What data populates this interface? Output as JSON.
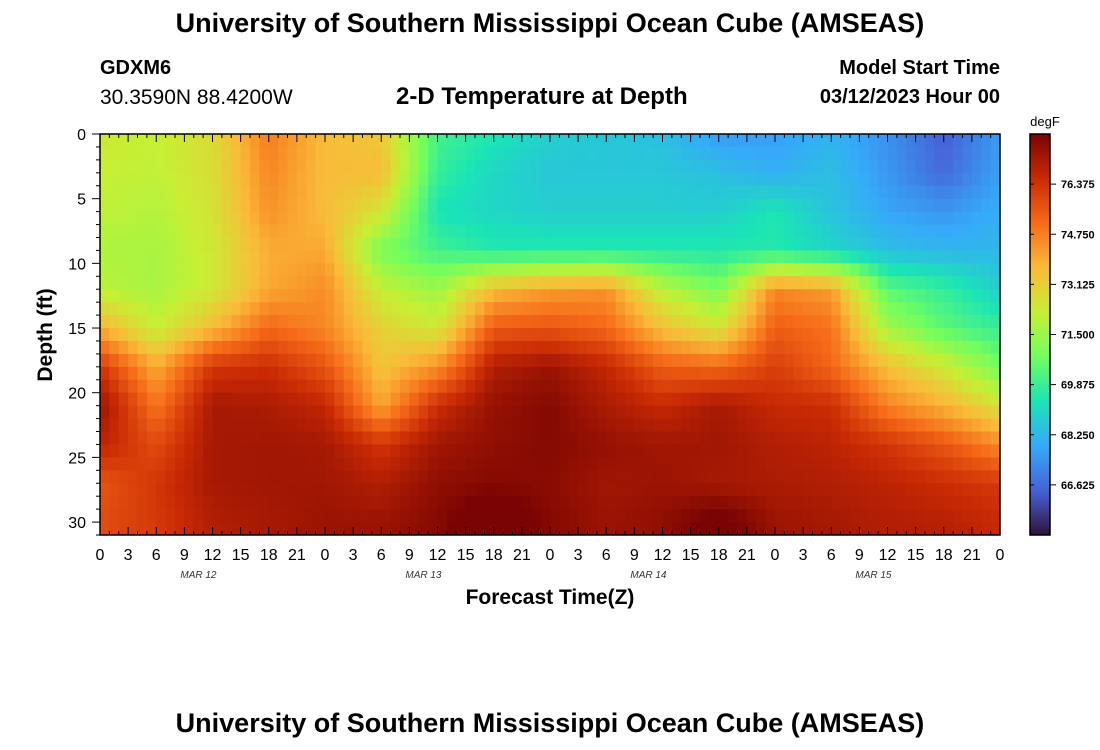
{
  "header": {
    "title": "University of Southern Mississippi Ocean Cube (AMSEAS)",
    "station": "GDXM6",
    "coords": "30.3590N  88.4200W",
    "start_label": "Model Start Time",
    "start_value": "03/12/2023 Hour 00"
  },
  "footer": {
    "title": "University of Southern Mississippi Ocean Cube (AMSEAS)"
  },
  "chart_data": {
    "type": "heatmap",
    "title": "2-D Temperature at Depth",
    "xlabel": "Forecast Time(Z)",
    "ylabel": "Depth (ft)",
    "colorbar_unit": "degF",
    "x_tick_labels": [
      "0",
      "3",
      "6",
      "9",
      "12",
      "15",
      "18",
      "21",
      "0",
      "3",
      "6",
      "9",
      "12",
      "15",
      "18",
      "21",
      "0",
      "3",
      "6",
      "9",
      "12",
      "15",
      "18",
      "21",
      "0",
      "3",
      "6",
      "9",
      "12",
      "15",
      "18",
      "21",
      "0"
    ],
    "day_labels": [
      "MAR 12",
      "MAR 13",
      "MAR 14",
      "MAR 15"
    ],
    "y_ticks": [
      0,
      5,
      10,
      15,
      20,
      25,
      30
    ],
    "y_range": [
      0,
      31
    ],
    "x_range_hours": [
      0,
      96
    ],
    "colorbar_ticks": [
      "76.375",
      "74.750",
      "73.125",
      "71.500",
      "69.875",
      "68.250",
      "66.625"
    ],
    "colorbar_values": [
      76.375,
      74.75,
      73.125,
      71.5,
      69.875,
      68.25,
      66.625
    ],
    "colorbar_range": [
      65.0,
      78.0
    ],
    "colormap": [
      "#30123b",
      "#4662d7",
      "#36aaf9",
      "#1ae4b6",
      "#72fe5e",
      "#c7ef34",
      "#faba39",
      "#f66b19",
      "#ca2a04",
      "#7a0403"
    ],
    "depths_ft": [
      0,
      3,
      6,
      9,
      12,
      15,
      18,
      21,
      24,
      27,
      30
    ],
    "hours": [
      0,
      6,
      12,
      18,
      24,
      30,
      36,
      42,
      48,
      54,
      60,
      66,
      72,
      78,
      84,
      90,
      96
    ],
    "temperature_degF": [
      [
        72.4,
        72.2,
        72.8,
        74.8,
        73.6,
        73.3,
        70.0,
        69.4,
        68.8,
        68.6,
        68.4,
        67.6,
        67.7,
        68.1,
        67.4,
        66.4,
        67.6
      ],
      [
        72.2,
        72.1,
        72.7,
        74.6,
        73.6,
        73.6,
        69.8,
        69.0,
        68.6,
        68.6,
        68.6,
        68.4,
        68.0,
        68.4,
        67.5,
        66.6,
        67.7
      ],
      [
        72.1,
        71.9,
        72.6,
        74.4,
        73.6,
        72.5,
        69.3,
        69.0,
        68.8,
        68.8,
        68.8,
        68.8,
        69.4,
        68.5,
        67.8,
        67.5,
        68.0
      ],
      [
        71.8,
        71.7,
        72.4,
        73.9,
        74.0,
        70.9,
        70.0,
        69.5,
        69.5,
        69.5,
        69.5,
        69.5,
        69.5,
        69.0,
        68.4,
        68.2,
        68.2
      ],
      [
        72.0,
        71.7,
        72.4,
        74.0,
        74.5,
        72.2,
        71.5,
        73.6,
        74.2,
        74.4,
        72.0,
        70.9,
        74.6,
        74.2,
        70.4,
        69.8,
        68.8
      ],
      [
        73.8,
        72.2,
        73.6,
        75.2,
        74.6,
        73.0,
        72.4,
        75.5,
        75.6,
        75.2,
        73.5,
        72.5,
        75.4,
        75.0,
        71.6,
        70.4,
        69.8
      ],
      [
        76.3,
        73.9,
        76.3,
        76.5,
        75.6,
        73.4,
        74.4,
        77.0,
        77.4,
        76.7,
        75.4,
        75.2,
        76.1,
        75.2,
        73.5,
        72.4,
        70.8
      ],
      [
        77.4,
        74.9,
        77.2,
        77.1,
        76.7,
        74.0,
        76.5,
        77.5,
        77.8,
        77.1,
        76.6,
        77.2,
        76.6,
        76.5,
        74.7,
        73.8,
        72.6
      ],
      [
        76.8,
        75.8,
        77.2,
        77.3,
        77.2,
        76.3,
        77.3,
        77.6,
        77.8,
        77.5,
        77.3,
        77.3,
        77.0,
        76.8,
        76.3,
        75.6,
        74.5
      ],
      [
        75.6,
        76.3,
        77.2,
        77.3,
        77.3,
        77.0,
        77.6,
        77.8,
        77.7,
        77.3,
        77.4,
        77.2,
        77.1,
        77.0,
        76.8,
        76.5,
        76.2
      ],
      [
        75.8,
        76.2,
        77.0,
        77.2,
        77.4,
        77.4,
        77.8,
        78.6,
        77.8,
        77.4,
        77.6,
        78.3,
        77.4,
        77.2,
        77.0,
        76.9,
        76.6
      ]
    ]
  }
}
